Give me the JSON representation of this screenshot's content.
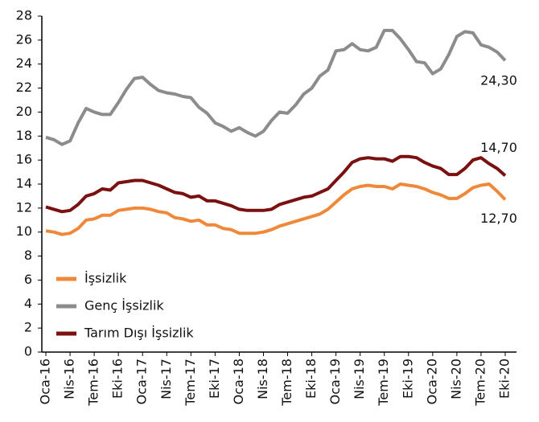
{
  "chart_data": {
    "type": "line",
    "categories": [
      "Oca-16",
      null,
      null,
      "Nis-16",
      null,
      null,
      "Tem-16",
      null,
      null,
      "Eki-16",
      null,
      null,
      "Oca-17",
      null,
      null,
      "Nis-17",
      null,
      null,
      "Tem-17",
      null,
      null,
      "Eki-17",
      null,
      null,
      "Oca-18",
      null,
      null,
      "Nis-18",
      null,
      null,
      "Tem-18",
      null,
      null,
      "Eki-18",
      null,
      null,
      "Oca-19",
      null,
      null,
      "Nis-19",
      null,
      null,
      "Tem-19",
      null,
      null,
      "Eki-19",
      null,
      null,
      "Oca-20",
      null,
      null,
      "Nis-20",
      null,
      null,
      "Tem-20",
      null,
      null,
      "Eki-20"
    ],
    "series": [
      {
        "name": "İşsizlik",
        "color": "#f0883a",
        "values": [
          10.1,
          10.0,
          9.8,
          9.9,
          10.3,
          11.0,
          11.1,
          11.4,
          11.4,
          11.8,
          11.9,
          12.0,
          12.0,
          11.9,
          11.7,
          11.6,
          11.2,
          11.1,
          10.9,
          11.0,
          10.6,
          10.6,
          10.3,
          10.2,
          9.9,
          9.9,
          9.9,
          10.0,
          10.2,
          10.5,
          10.7,
          10.9,
          11.1,
          11.3,
          11.5,
          11.9,
          12.5,
          13.1,
          13.6,
          13.8,
          13.9,
          13.8,
          13.8,
          13.6,
          14.0,
          13.9,
          13.8,
          13.6,
          13.3,
          13.1,
          12.8,
          12.8,
          13.2,
          13.7,
          13.9,
          14.0,
          13.4,
          12.7
        ],
        "value_labels": [
          null,
          null,
          null,
          null,
          null,
          null,
          null,
          null,
          null,
          null,
          null,
          null,
          null,
          null,
          null,
          null,
          null,
          null,
          null,
          null,
          null,
          null,
          null,
          null,
          null,
          null,
          null,
          null,
          null,
          null,
          null,
          null,
          null,
          null,
          null,
          null,
          null,
          null,
          null,
          null,
          null,
          null,
          null,
          null,
          null,
          null,
          null,
          null,
          null,
          null,
          null,
          null,
          null,
          null,
          null,
          null,
          null,
          "12,70"
        ]
      },
      {
        "name": "Genç İşsizlik",
        "color": "#8c8c8c",
        "values": [
          17.9,
          17.7,
          17.3,
          17.6,
          19.1,
          20.3,
          20.0,
          19.8,
          19.8,
          20.8,
          21.9,
          22.8,
          22.9,
          22.3,
          21.8,
          21.6,
          21.5,
          21.3,
          21.2,
          20.4,
          19.9,
          19.1,
          18.8,
          18.4,
          18.7,
          18.3,
          18.0,
          18.4,
          19.3,
          20.0,
          19.9,
          20.6,
          21.5,
          22.0,
          23.0,
          23.5,
          25.1,
          25.2,
          25.7,
          25.2,
          25.1,
          25.4,
          26.8,
          26.8,
          26.1,
          25.2,
          24.2,
          24.1,
          23.2,
          23.6,
          24.8,
          26.3,
          26.7,
          26.6,
          25.6,
          25.4,
          25.0,
          24.3
        ],
        "value_labels": [
          null,
          null,
          null,
          null,
          null,
          null,
          null,
          null,
          null,
          null,
          null,
          null,
          null,
          null,
          null,
          null,
          null,
          null,
          null,
          null,
          null,
          null,
          null,
          null,
          null,
          null,
          null,
          null,
          null,
          null,
          null,
          null,
          null,
          null,
          null,
          null,
          null,
          null,
          null,
          null,
          null,
          null,
          null,
          null,
          null,
          null,
          null,
          null,
          null,
          null,
          null,
          null,
          null,
          null,
          null,
          null,
          null,
          "24,30"
        ]
      },
      {
        "name": "Tarım Dışı İşsizlik",
        "color": "#7a1010",
        "values": [
          12.1,
          11.9,
          11.7,
          11.8,
          12.3,
          13.0,
          13.2,
          13.6,
          13.5,
          14.1,
          14.2,
          14.3,
          14.3,
          14.1,
          13.9,
          13.6,
          13.3,
          13.2,
          12.9,
          13.0,
          12.6,
          12.6,
          12.4,
          12.2,
          11.9,
          11.8,
          11.8,
          11.8,
          11.9,
          12.3,
          12.5,
          12.7,
          12.9,
          13.0,
          13.3,
          13.6,
          14.3,
          15.0,
          15.8,
          16.1,
          16.2,
          16.1,
          16.1,
          15.9,
          16.3,
          16.3,
          16.2,
          15.8,
          15.5,
          15.3,
          14.8,
          14.8,
          15.3,
          16.0,
          16.2,
          15.7,
          15.3,
          14.7
        ],
        "value_labels": [
          null,
          null,
          null,
          null,
          null,
          null,
          null,
          null,
          null,
          null,
          null,
          null,
          null,
          null,
          null,
          null,
          null,
          null,
          null,
          null,
          null,
          null,
          null,
          null,
          null,
          null,
          null,
          null,
          null,
          null,
          null,
          null,
          null,
          null,
          null,
          null,
          null,
          null,
          null,
          null,
          null,
          null,
          null,
          null,
          null,
          null,
          null,
          null,
          null,
          null,
          null,
          null,
          null,
          null,
          null,
          null,
          null,
          "14,70"
        ]
      }
    ],
    "ylim": [
      0,
      28
    ],
    "yticks": [
      0,
      2,
      4,
      6,
      8,
      10,
      12,
      14,
      16,
      18,
      20,
      22,
      24,
      26,
      28
    ]
  }
}
